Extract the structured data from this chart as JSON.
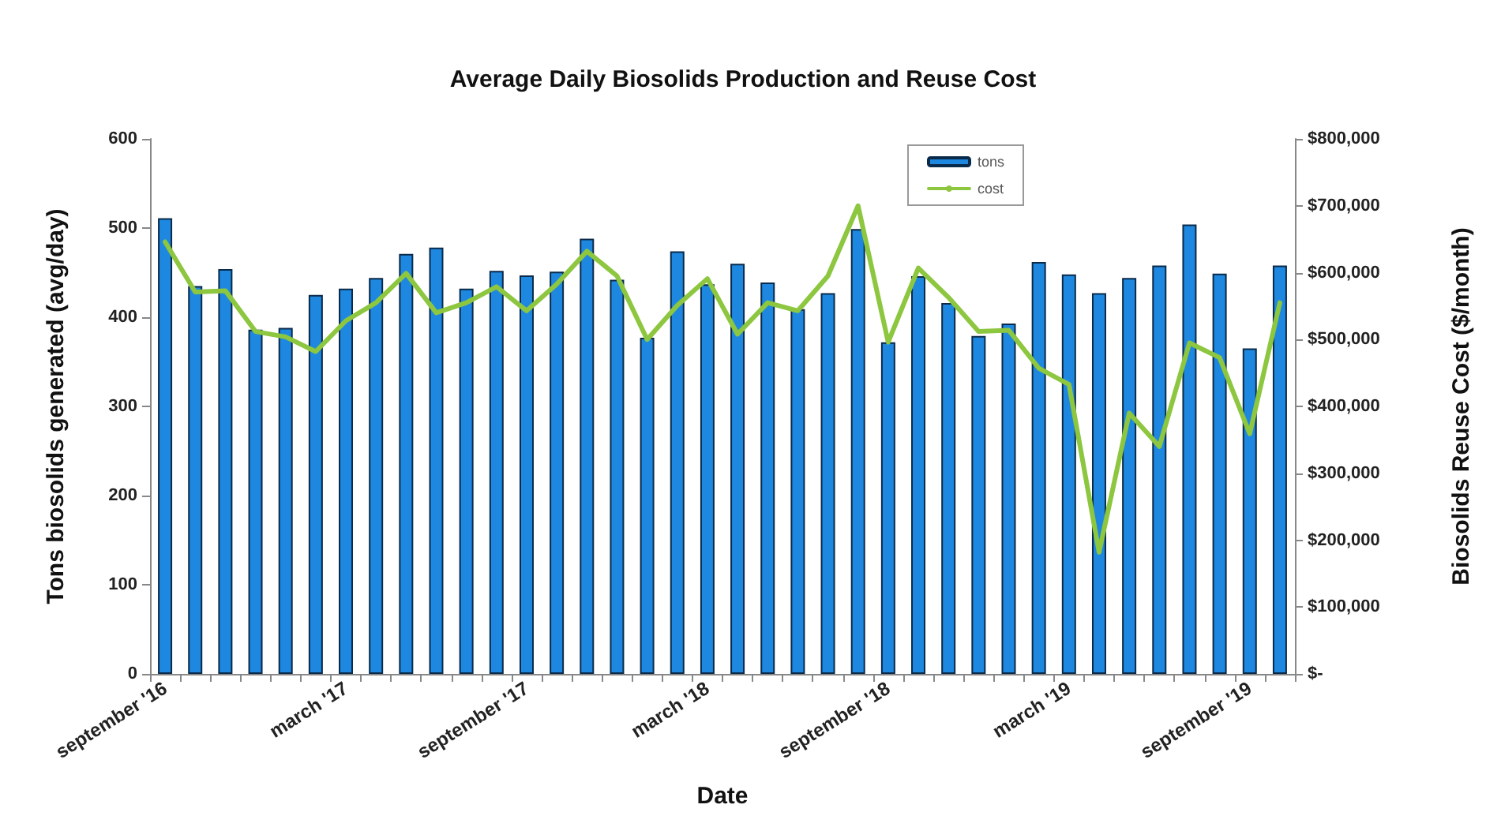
{
  "chart_data": {
    "type": "bar",
    "title": "Average Daily Biosolids Production and Reuse Cost",
    "xlabel": "Date",
    "ylabel": "Tons biosolids generated (avg/day)",
    "y2label": "Biosolids Reuse Cost ($/month)",
    "categories": [
      "september '16",
      null,
      null,
      null,
      null,
      null,
      "march '17",
      null,
      null,
      null,
      null,
      null,
      "september '17",
      null,
      null,
      null,
      null,
      null,
      "march '18",
      null,
      null,
      null,
      null,
      null,
      "september '18",
      null,
      null,
      null,
      null,
      null,
      "march '19",
      null,
      null,
      null,
      null,
      null,
      "september '19",
      null
    ],
    "series": [
      {
        "name": "tons",
        "color": "#1e88e0",
        "values": [
          511,
          435,
          454,
          386,
          388,
          425,
          432,
          444,
          471,
          478,
          432,
          452,
          447,
          451,
          488,
          442,
          377,
          474,
          437,
          460,
          439,
          409,
          427,
          499,
          372,
          446,
          416,
          379,
          393,
          462,
          448,
          427,
          444,
          458,
          504,
          449,
          365,
          458
        ]
      },
      {
        "name": "cost",
        "type": "line",
        "axis": "y2",
        "color": "#8dc63f",
        "values": [
          646000,
          571000,
          573000,
          512000,
          504000,
          482000,
          528000,
          555000,
          599000,
          540000,
          555000,
          579000,
          543000,
          583000,
          632000,
          595000,
          500000,
          551000,
          591000,
          508000,
          555000,
          543000,
          595000,
          700000,
          496000,
          607000,
          563000,
          512000,
          514000,
          457000,
          433000,
          182000,
          390000,
          340000,
          495000,
          473000,
          359000,
          555000
        ]
      }
    ],
    "ylim": [
      0,
      600
    ],
    "yticks": [
      0,
      100,
      200,
      300,
      400,
      500,
      600
    ],
    "y2lim": [
      0,
      800000
    ],
    "y2ticks": [
      {
        "value": 0,
        "label": "$-"
      },
      {
        "value": 100000,
        "label": "$100,000"
      },
      {
        "value": 200000,
        "label": "$200,000"
      },
      {
        "value": 300000,
        "label": "$300,000"
      },
      {
        "value": 400000,
        "label": "$400,000"
      },
      {
        "value": 500000,
        "label": "$500,000"
      },
      {
        "value": 600000,
        "label": "$600,000"
      },
      {
        "value": 700000,
        "label": "$700,000"
      },
      {
        "value": 800000,
        "label": "$800,000"
      }
    ],
    "legend": "top",
    "grid": false,
    "marker": "none",
    "line_style": "solid"
  }
}
